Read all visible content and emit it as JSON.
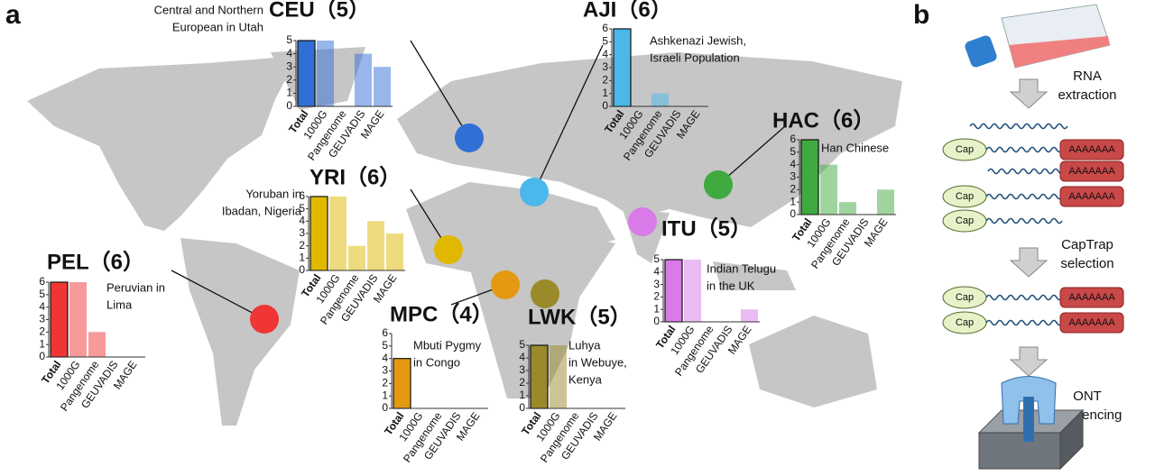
{
  "panel_labels": [
    "a",
    "b"
  ],
  "chart_data": [
    {
      "type": "bar",
      "title": "CEU（5）",
      "description": [
        "Central and Northern",
        "European in Utah"
      ],
      "categories": [
        "Total",
        "1000G",
        "Pangenome",
        "GEUVADIS",
        "MAGE"
      ],
      "values": [
        5,
        5,
        0,
        4,
        3
      ],
      "color": "#2f6fd6",
      "ylim": [
        0,
        5
      ],
      "yticks": [
        0,
        1,
        2,
        3,
        4,
        5
      ]
    },
    {
      "type": "bar",
      "title": "AJI（6）",
      "description": [
        "Ashkenazi Jewish,",
        "Israeli Population"
      ],
      "categories": [
        "Total",
        "1000G",
        "Pangenome",
        "GEUVADIS",
        "MAGE"
      ],
      "values": [
        6,
        0,
        1,
        0,
        0
      ],
      "color": "#4ab8ea",
      "ylim": [
        0,
        6
      ],
      "yticks": [
        0,
        1,
        2,
        3,
        4,
        5,
        6
      ]
    },
    {
      "type": "bar",
      "title": "HAC（6）",
      "description": [
        "Han Chinese"
      ],
      "categories": [
        "Total",
        "1000G",
        "Pangenome",
        "GEUVADIS",
        "MAGE"
      ],
      "values": [
        6,
        4,
        1,
        0,
        2
      ],
      "color": "#3faa3f",
      "ylim": [
        0,
        6
      ],
      "yticks": [
        0,
        1,
        2,
        3,
        4,
        5,
        6
      ]
    },
    {
      "type": "bar",
      "title": "YRI（6）",
      "description": [
        "Yoruban in",
        "Ibadan, Nigeria"
      ],
      "categories": [
        "Total",
        "1000G",
        "Pangenome",
        "GEUVADIS",
        "MAGE"
      ],
      "values": [
        6,
        6,
        2,
        4,
        3
      ],
      "color": "#e0b800",
      "ylim": [
        0,
        6
      ],
      "yticks": [
        0,
        1,
        2,
        3,
        4,
        5,
        6
      ]
    },
    {
      "type": "bar",
      "title": "PEL（6）",
      "description": [
        "Peruvian in",
        "Lima"
      ],
      "categories": [
        "Total",
        "1000G",
        "Pangenome",
        "GEUVADIS",
        "MAGE"
      ],
      "values": [
        6,
        6,
        2,
        0,
        0
      ],
      "color": "#f03535",
      "ylim": [
        0,
        6
      ],
      "yticks": [
        0,
        1,
        2,
        3,
        4,
        5,
        6
      ]
    },
    {
      "type": "bar",
      "title": "ITU（5）",
      "description": [
        "Indian Telugu",
        "in the UK"
      ],
      "categories": [
        "Total",
        "1000G",
        "Pangenome",
        "GEUVADIS",
        "MAGE"
      ],
      "values": [
        5,
        5,
        0,
        0,
        1
      ],
      "color": "#d87ae8",
      "ylim": [
        0,
        5
      ],
      "yticks": [
        0,
        1,
        2,
        3,
        4,
        5
      ]
    },
    {
      "type": "bar",
      "title": "MPC（4）",
      "description": [
        "Mbuti Pygmy",
        "in Congo"
      ],
      "categories": [
        "Total",
        "1000G",
        "Pangenome",
        "GEUVADIS",
        "MAGE"
      ],
      "values": [
        4,
        0,
        0,
        0,
        0
      ],
      "color": "#e39a12",
      "ylim": [
        0,
        6
      ],
      "yticks": [
        0,
        1,
        2,
        3,
        4,
        5,
        6
      ]
    },
    {
      "type": "bar",
      "title": "LWK（5）",
      "description": [
        "Luhya",
        "in Webuye,",
        "Kenya"
      ],
      "categories": [
        "Total",
        "1000G",
        "Pangenome",
        "GEUVADIS",
        "MAGE"
      ],
      "values": [
        5,
        5,
        0,
        0,
        0
      ],
      "color": "#9a8a2a",
      "ylim": [
        0,
        5
      ],
      "yticks": [
        0,
        1,
        2,
        3,
        4,
        5
      ]
    }
  ],
  "workflow": {
    "steps": [
      [
        "RNA",
        "extraction"
      ],
      [
        "CapTrap",
        "selection"
      ],
      [
        "ONT",
        "sequencing"
      ]
    ],
    "cap": "Cap",
    "polya": "AAAAAAA"
  }
}
